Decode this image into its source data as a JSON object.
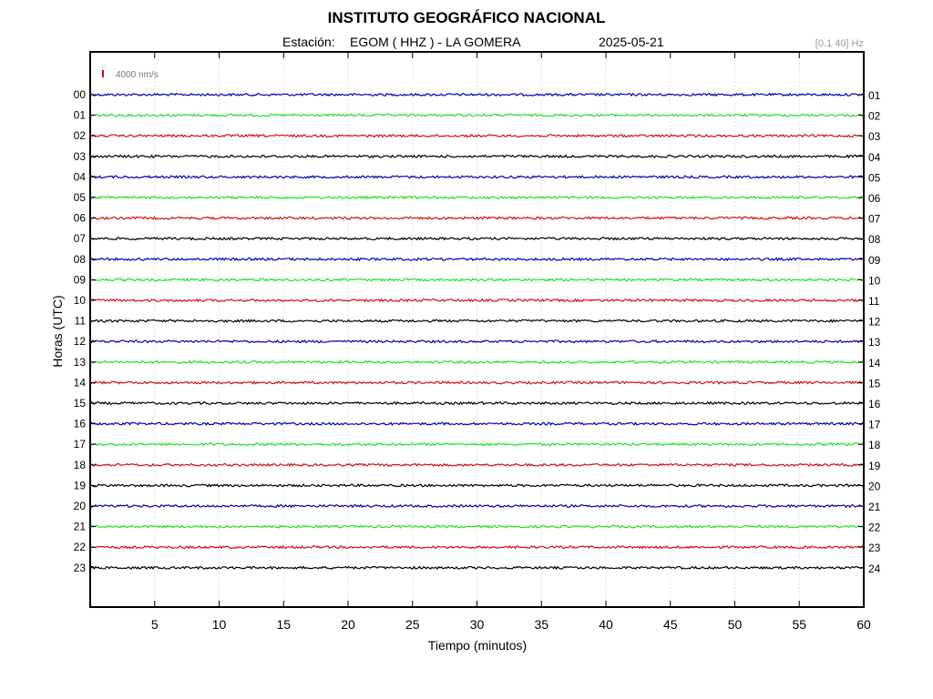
{
  "title": "INSTITUTO GEOGRÁFICO NACIONAL",
  "subtitle": {
    "station_label": "Estación:",
    "station": "EGOM ( HHZ ) - LA GOMERA",
    "date": "2025-05-21"
  },
  "filter_label": "[0.1 40] Hz",
  "scale_label": "4000 nm/s",
  "chart_data": {
    "type": "line",
    "title": "INSTITUTO GEOGRÁFICO NACIONAL",
    "xlabel": "Tiempo (minutos)",
    "ylabel": "Horas (UTC)",
    "xlim": [
      0,
      60
    ],
    "x_ticks": [
      "5",
      "10",
      "15",
      "20",
      "25",
      "30",
      "35",
      "40",
      "45",
      "50",
      "55",
      "60"
    ],
    "grid": true,
    "left_labels": [
      "00",
      "01",
      "02",
      "03",
      "04",
      "05",
      "06",
      "07",
      "08",
      "09",
      "10",
      "11",
      "12",
      "13",
      "14",
      "15",
      "16",
      "17",
      "18",
      "19",
      "20",
      "21",
      "22",
      "23"
    ],
    "right_labels": [
      "01",
      "02",
      "03",
      "04",
      "05",
      "06",
      "07",
      "08",
      "09",
      "10",
      "11",
      "12",
      "13",
      "14",
      "15",
      "16",
      "17",
      "18",
      "19",
      "20",
      "21",
      "22",
      "23",
      "24"
    ],
    "series_colors": [
      "#0000b4",
      "#22e022",
      "#d01010",
      "#000000"
    ]
  }
}
